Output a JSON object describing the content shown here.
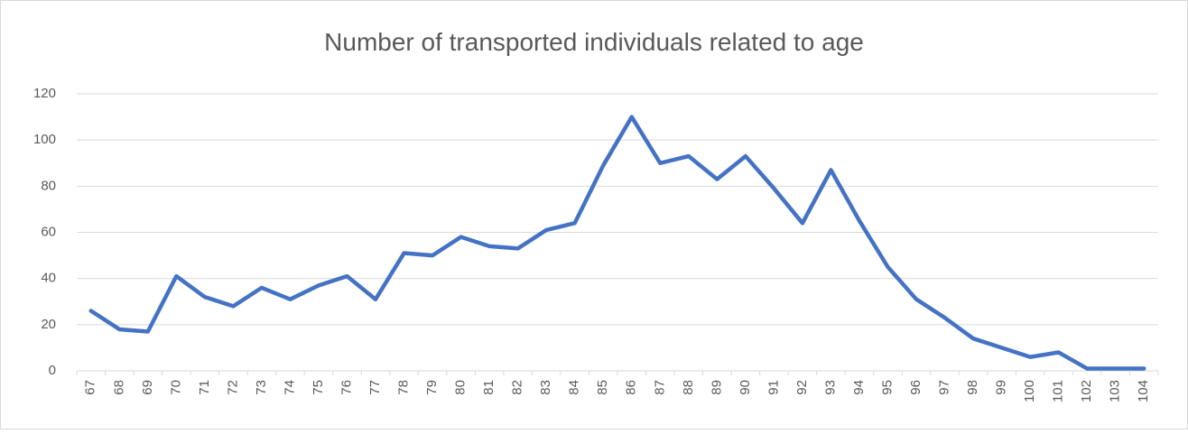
{
  "chart_data": {
    "type": "line",
    "title": "Number of transported individuals related to age",
    "categories": [
      "67",
      "68",
      "69",
      "70",
      "71",
      "72",
      "73",
      "74",
      "75",
      "76",
      "77",
      "78",
      "79",
      "80",
      "81",
      "82",
      "83",
      "84",
      "85",
      "86",
      "87",
      "88",
      "89",
      "90",
      "91",
      "92",
      "93",
      "94",
      "95",
      "96",
      "97",
      "98",
      "99",
      "100",
      "101",
      "102",
      "103",
      "104"
    ],
    "values": [
      26,
      18,
      17,
      41,
      32,
      28,
      36,
      31,
      37,
      41,
      31,
      51,
      50,
      58,
      54,
      53,
      61,
      64,
      89,
      110,
      90,
      93,
      83,
      93,
      79,
      64,
      87,
      65,
      45,
      31,
      23,
      14,
      10,
      6,
      8,
      1,
      1,
      1
    ],
    "color": "#4472c4",
    "ylim": [
      0,
      120
    ],
    "yticks": [
      0,
      20,
      40,
      60,
      80,
      100,
      120
    ],
    "grid": true
  }
}
